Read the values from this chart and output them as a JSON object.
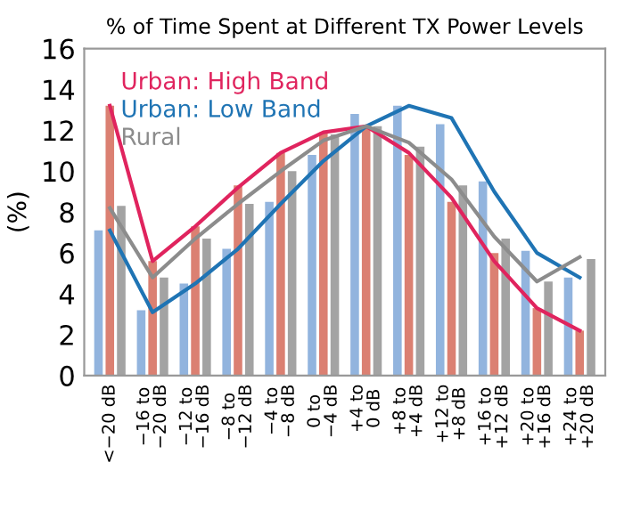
{
  "chart_data": {
    "type": "bar",
    "title": "% of Time Spent at Different TX Power Levels",
    "ylabel": "(%)",
    "categories": [
      "<−20 dB",
      "−16 to\n−20 dB",
      "−12 to\n−16 dB",
      "−8 to\n−12 dB",
      "−4 to\n−8 dB",
      "0 to\n−4 dB",
      "+4 to\n0 dB",
      "+8 to\n+4 dB",
      "+12 to\n+8 dB",
      "+16 to\n+12 dB",
      "+20 to\n+16 dB",
      "+24 to\n+20 dB"
    ],
    "series": [
      {
        "color": "#92b4de",
        "values": [
          7.1,
          3.2,
          4.5,
          6.2,
          8.5,
          10.8,
          12.8,
          13.2,
          12.3,
          9.5,
          6.1,
          4.8
        ]
      },
      {
        "color": "#db8072",
        "values": [
          13.2,
          5.6,
          7.3,
          9.3,
          10.9,
          11.9,
          12.2,
          10.8,
          8.5,
          6.0,
          3.3,
          2.2
        ]
      },
      {
        "color": "#a3a3a3",
        "values": [
          8.3,
          4.8,
          6.7,
          8.4,
          10.0,
          11.8,
          12.2,
          11.2,
          9.3,
          6.7,
          4.6,
          5.7
        ]
      },
      {
        "type": "line",
        "name": "Urban: High Band",
        "color": "#e0245e",
        "values": [
          13.2,
          5.6,
          7.3,
          9.2,
          10.9,
          11.9,
          12.2,
          10.9,
          8.7,
          5.6,
          3.3,
          2.2
        ]
      },
      {
        "type": "line",
        "name": "Urban: Low Band",
        "color": "#1f74b4",
        "values": [
          7.1,
          3.1,
          4.5,
          6.2,
          8.4,
          10.5,
          12.2,
          13.2,
          12.6,
          9.0,
          6.0,
          4.8
        ]
      },
      {
        "type": "line",
        "name": "Rural",
        "color": "#8c8c8c",
        "values": [
          8.2,
          4.8,
          6.7,
          8.4,
          10.0,
          11.5,
          12.2,
          11.4,
          9.6,
          6.8,
          4.6,
          5.8
        ]
      }
    ],
    "ylim": [
      0,
      16
    ],
    "yticks": [
      0,
      2,
      4,
      6,
      8,
      10,
      12,
      14,
      16
    ],
    "grid": false,
    "legend": "top left"
  }
}
